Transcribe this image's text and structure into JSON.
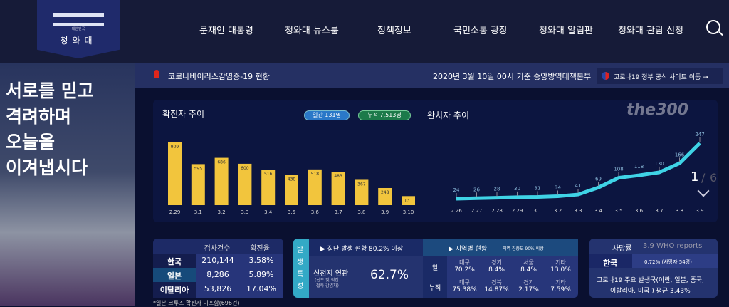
{
  "header": {
    "logo_small": "대한민국",
    "logo_text": "청와대",
    "nav": [
      "문재인 대통령",
      "청와대 뉴스룸",
      "정책정보",
      "국민소통 광장",
      "청와대 알림판",
      "청와대 관람 신청"
    ]
  },
  "hero": {
    "lines": [
      "서로를 믿고",
      "격려하며",
      "오늘을",
      "이겨냅시다"
    ]
  },
  "status": {
    "title": "코로나바이러스감염증-19 현황",
    "date": "2020년 3월 10일 00시 기준 중앙방역대책본부",
    "link": "코로나19 정부 공식 사이트 이동 →"
  },
  "confirmed": {
    "title": "확진자 추이",
    "daily_badge": "일간  131명",
    "total_badge": "누적  7,513명"
  },
  "recovered": {
    "title": "완치자 추이",
    "pager_current": "1",
    "pager_sep": "/",
    "pager_total": "6"
  },
  "chart_data": [
    {
      "type": "bar",
      "title": "확진자 추이",
      "categories": [
        "2.29",
        "3.1",
        "3.2",
        "3.3",
        "3.4",
        "3.5",
        "3.6",
        "3.7",
        "3.8",
        "3.9",
        "3.10"
      ],
      "values": [
        909,
        595,
        686,
        600,
        516,
        438,
        518,
        483,
        367,
        248,
        131
      ],
      "color": "#f2c53d"
    },
    {
      "type": "line",
      "title": "완치자 추이",
      "categories": [
        "2.26",
        "2.27",
        "2.28",
        "2.29",
        "3.1",
        "3.2",
        "3.3",
        "3.4",
        "3.5",
        "3.6",
        "3.7",
        "3.8",
        "3.9"
      ],
      "values": [
        24,
        26,
        28,
        30,
        31,
        34,
        41,
        69,
        108,
        118,
        130,
        166,
        247
      ],
      "color": "#3fd3e6"
    }
  ],
  "tests": {
    "headers": [
      "검사건수",
      "확진율"
    ],
    "rows": [
      {
        "country": "한국",
        "tests": "210,144",
        "rate": "3.58%"
      },
      {
        "country": "일본",
        "tests": "8,286",
        "rate": "5.89%"
      },
      {
        "country": "이탈리아",
        "tests": "53,826",
        "rate": "17.04%"
      }
    ],
    "note": "*일본 크루즈 확진자 미포함(696건)"
  },
  "cluster": {
    "side": "발생특성",
    "title": "▶ 집단 발생 현황 80.2% 이상",
    "label": "신천지 연관",
    "sub1": "(신도 및 직접",
    "sub2": "접촉 감염자)",
    "value": "62.7%"
  },
  "region": {
    "title": "▶ 지역별 현황",
    "subtitle": "지역 집중도 90% 이상",
    "rows": [
      {
        "label": "일",
        "items": [
          [
            "대구",
            "70.2%"
          ],
          [
            "경기",
            "8.4%"
          ],
          [
            "서울",
            "8.4%"
          ],
          [
            "기타",
            "13.0%"
          ]
        ]
      },
      {
        "label": "누적",
        "items": [
          [
            "대구",
            "75.38%"
          ],
          [
            "경북",
            "14.87%"
          ],
          [
            "경기",
            "2.17%"
          ],
          [
            "기타",
            "7.59%"
          ]
        ]
      }
    ]
  },
  "death": {
    "label": "사망률",
    "who": "3.9 WHO reports",
    "country": "한국",
    "value": "0.72% (사망자 54명)",
    "avg1": "코로나19 주요 발생국(이란, 일본, 중국,",
    "avg2": "이탈리아, 미국 ) 평균 3.43%"
  },
  "watermark": "the300"
}
